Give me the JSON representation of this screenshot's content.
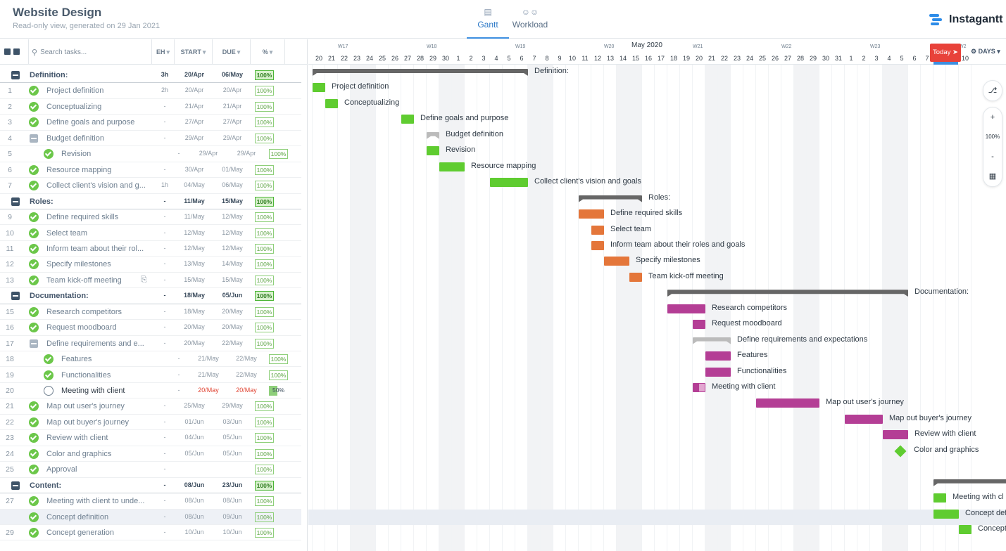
{
  "header": {
    "title": "Website Design",
    "subtitle": "Read-only view, generated on 29 Jan 2021",
    "tab_gantt": "Gantt",
    "tab_workload": "Workload",
    "brand": "Instagantt"
  },
  "columns": {
    "search_placeholder": "Search tasks...",
    "eh": "EH",
    "start": "START",
    "due": "DUE",
    "pct": "%"
  },
  "timeline": {
    "month": "May 2020",
    "weeks": [
      "W17",
      "W18",
      "W19",
      "W20",
      "W21",
      "W22",
      "W23",
      "W2"
    ],
    "days": [
      "0",
      "20",
      "21",
      "22",
      "23",
      "24",
      "25",
      "26",
      "27",
      "28",
      "29",
      "30",
      "1",
      "2",
      "3",
      "4",
      "5",
      "6",
      "7",
      "8",
      "9",
      "10",
      "11",
      "12",
      "13",
      "14",
      "15",
      "16",
      "17",
      "18",
      "19",
      "20",
      "21",
      "22",
      "23",
      "24",
      "25",
      "26",
      "27",
      "28",
      "29",
      "30",
      "31",
      "1",
      "2",
      "3",
      "4",
      "5",
      "6",
      "7",
      "8",
      "9",
      "10"
    ],
    "today_label": "Today",
    "scale_label": "DAYS",
    "zoom": "100%"
  },
  "tasks": [
    {
      "num": "",
      "name": "Definition:",
      "eh": "3h",
      "start": "20/Apr",
      "due": "06/May",
      "pct": "100%",
      "group": true
    },
    {
      "num": "1",
      "name": "Project definition",
      "eh": "2h",
      "start": "20/Apr",
      "due": "20/Apr",
      "pct": "100%"
    },
    {
      "num": "2",
      "name": "Conceptualizing",
      "eh": "-",
      "start": "21/Apr",
      "due": "21/Apr",
      "pct": "100%"
    },
    {
      "num": "3",
      "name": "Define goals and purpose",
      "eh": "-",
      "start": "27/Apr",
      "due": "27/Apr",
      "pct": "100%"
    },
    {
      "num": "4",
      "name": "Budget definition",
      "eh": "-",
      "start": "29/Apr",
      "due": "29/Apr",
      "pct": "100%",
      "sub": true
    },
    {
      "num": "5",
      "name": "Revision",
      "eh": "-",
      "start": "29/Apr",
      "due": "29/Apr",
      "pct": "100%",
      "indent": true
    },
    {
      "num": "6",
      "name": "Resource mapping",
      "eh": "-",
      "start": "30/Apr",
      "due": "01/May",
      "pct": "100%"
    },
    {
      "num": "7",
      "name": "Collect client's vision and g...",
      "eh": "1h",
      "start": "04/May",
      "due": "06/May",
      "pct": "100%"
    },
    {
      "num": "",
      "name": "Roles:",
      "eh": "-",
      "start": "11/May",
      "due": "15/May",
      "pct": "100%",
      "group": true
    },
    {
      "num": "9",
      "name": "Define required skills",
      "eh": "-",
      "start": "11/May",
      "due": "12/May",
      "pct": "100%"
    },
    {
      "num": "10",
      "name": "Select team",
      "eh": "-",
      "start": "12/May",
      "due": "12/May",
      "pct": "100%"
    },
    {
      "num": "11",
      "name": "Inform team about their rol...",
      "eh": "-",
      "start": "12/May",
      "due": "12/May",
      "pct": "100%"
    },
    {
      "num": "12",
      "name": "Specify milestones",
      "eh": "-",
      "start": "13/May",
      "due": "14/May",
      "pct": "100%"
    },
    {
      "num": "13",
      "name": "Team kick-off meeting",
      "eh": "-",
      "start": "15/May",
      "due": "15/May",
      "pct": "100%",
      "clip": true
    },
    {
      "num": "",
      "name": "Documentation:",
      "eh": "-",
      "start": "18/May",
      "due": "05/Jun",
      "pct": "100%",
      "group": true
    },
    {
      "num": "15",
      "name": "Research competitors",
      "eh": "-",
      "start": "18/May",
      "due": "20/May",
      "pct": "100%"
    },
    {
      "num": "16",
      "name": "Request moodboard",
      "eh": "-",
      "start": "20/May",
      "due": "20/May",
      "pct": "100%"
    },
    {
      "num": "17",
      "name": "Define requirements and e...",
      "eh": "-",
      "start": "20/May",
      "due": "22/May",
      "pct": "100%",
      "sub": true
    },
    {
      "num": "18",
      "name": "Features",
      "eh": "-",
      "start": "21/May",
      "due": "22/May",
      "pct": "100%",
      "indent": true
    },
    {
      "num": "19",
      "name": "Functionalities",
      "eh": "-",
      "start": "21/May",
      "due": "22/May",
      "pct": "100%",
      "indent": true
    },
    {
      "num": "20",
      "name": "Meeting with client",
      "eh": "-",
      "start": "20/May",
      "due": "20/May",
      "pct": "50%",
      "indent": true,
      "open": true,
      "late": true
    },
    {
      "num": "21",
      "name": "Map out user's journey",
      "eh": "-",
      "start": "25/May",
      "due": "29/May",
      "pct": "100%"
    },
    {
      "num": "22",
      "name": "Map out buyer's journey",
      "eh": "-",
      "start": "01/Jun",
      "due": "03/Jun",
      "pct": "100%"
    },
    {
      "num": "23",
      "name": "Review with client",
      "eh": "-",
      "start": "04/Jun",
      "due": "05/Jun",
      "pct": "100%"
    },
    {
      "num": "24",
      "name": "Color and graphics",
      "eh": "-",
      "start": "05/Jun",
      "due": "05/Jun",
      "pct": "100%"
    },
    {
      "num": "25",
      "name": "Approval",
      "eh": "-",
      "start": "",
      "due": "",
      "pct": "100%"
    },
    {
      "num": "",
      "name": "Content:",
      "eh": "-",
      "start": "08/Jun",
      "due": "23/Jun",
      "pct": "100%",
      "group": true
    },
    {
      "num": "27",
      "name": "Meeting with client to unde...",
      "eh": "-",
      "start": "08/Jun",
      "due": "08/Jun",
      "pct": "100%"
    },
    {
      "num": "",
      "name": "Concept definition",
      "eh": "-",
      "start": "08/Jun",
      "due": "09/Jun",
      "pct": "100%",
      "hl": true
    },
    {
      "num": "29",
      "name": "Concept generation",
      "eh": "-",
      "start": "10/Jun",
      "due": "10/Jun",
      "pct": "100%"
    }
  ],
  "bars": [
    {
      "label": "Definition:",
      "kind": "summary"
    },
    {
      "label": "Project definition",
      "color": "#5fcc30"
    },
    {
      "label": "Conceptualizing",
      "color": "#5fcc30"
    },
    {
      "label": "Define goals and purpose",
      "color": "#5fcc30"
    },
    {
      "label": "Budget definition",
      "kind": "subsummary"
    },
    {
      "label": "Revision",
      "color": "#5fcc30"
    },
    {
      "label": "Resource mapping",
      "color": "#5fcc30"
    },
    {
      "label": "Collect client's vision and goals",
      "color": "#5fcc30"
    },
    {
      "label": "Roles:",
      "kind": "summary"
    },
    {
      "label": "Define required skills",
      "color": "#e4763a"
    },
    {
      "label": "Select team",
      "color": "#e4763a"
    },
    {
      "label": "Inform team about their roles and goals",
      "color": "#e4763a"
    },
    {
      "label": "Specify milestones",
      "color": "#e4763a"
    },
    {
      "label": "Team kick-off meeting",
      "color": "#e4763a"
    },
    {
      "label": "Documentation:",
      "kind": "summary"
    },
    {
      "label": "Research competitors",
      "color": "#b43e95"
    },
    {
      "label": "Request moodboard",
      "color": "#b43e95"
    },
    {
      "label": "Define requirements and expectations",
      "kind": "subsummary"
    },
    {
      "label": "Features",
      "color": "#b43e95"
    },
    {
      "label": "Functionalities",
      "color": "#b43e95"
    },
    {
      "label": "Meeting with client",
      "color": "#b43e95",
      "progress": 0.5
    },
    {
      "label": "Map out user's journey",
      "color": "#b43e95"
    },
    {
      "label": "Map out buyer's journey",
      "color": "#b43e95"
    },
    {
      "label": "Review with client",
      "color": "#b43e95"
    },
    {
      "label": "Color and graphics",
      "kind": "milestone",
      "color": "#5fcc30"
    },
    {
      "label": "",
      "kind": "none"
    },
    {
      "label": "",
      "kind": "summary"
    },
    {
      "label": "Meeting with cl",
      "color": "#5fcc30"
    },
    {
      "label": "Concept def",
      "color": "#5fcc30"
    },
    {
      "label": "Concept",
      "color": "#5fcc30"
    }
  ],
  "colors": {
    "green": "#5fcc30",
    "orange": "#e4763a",
    "magenta": "#b43e95",
    "today": "#e8423a",
    "accent": "#2d79c7"
  }
}
